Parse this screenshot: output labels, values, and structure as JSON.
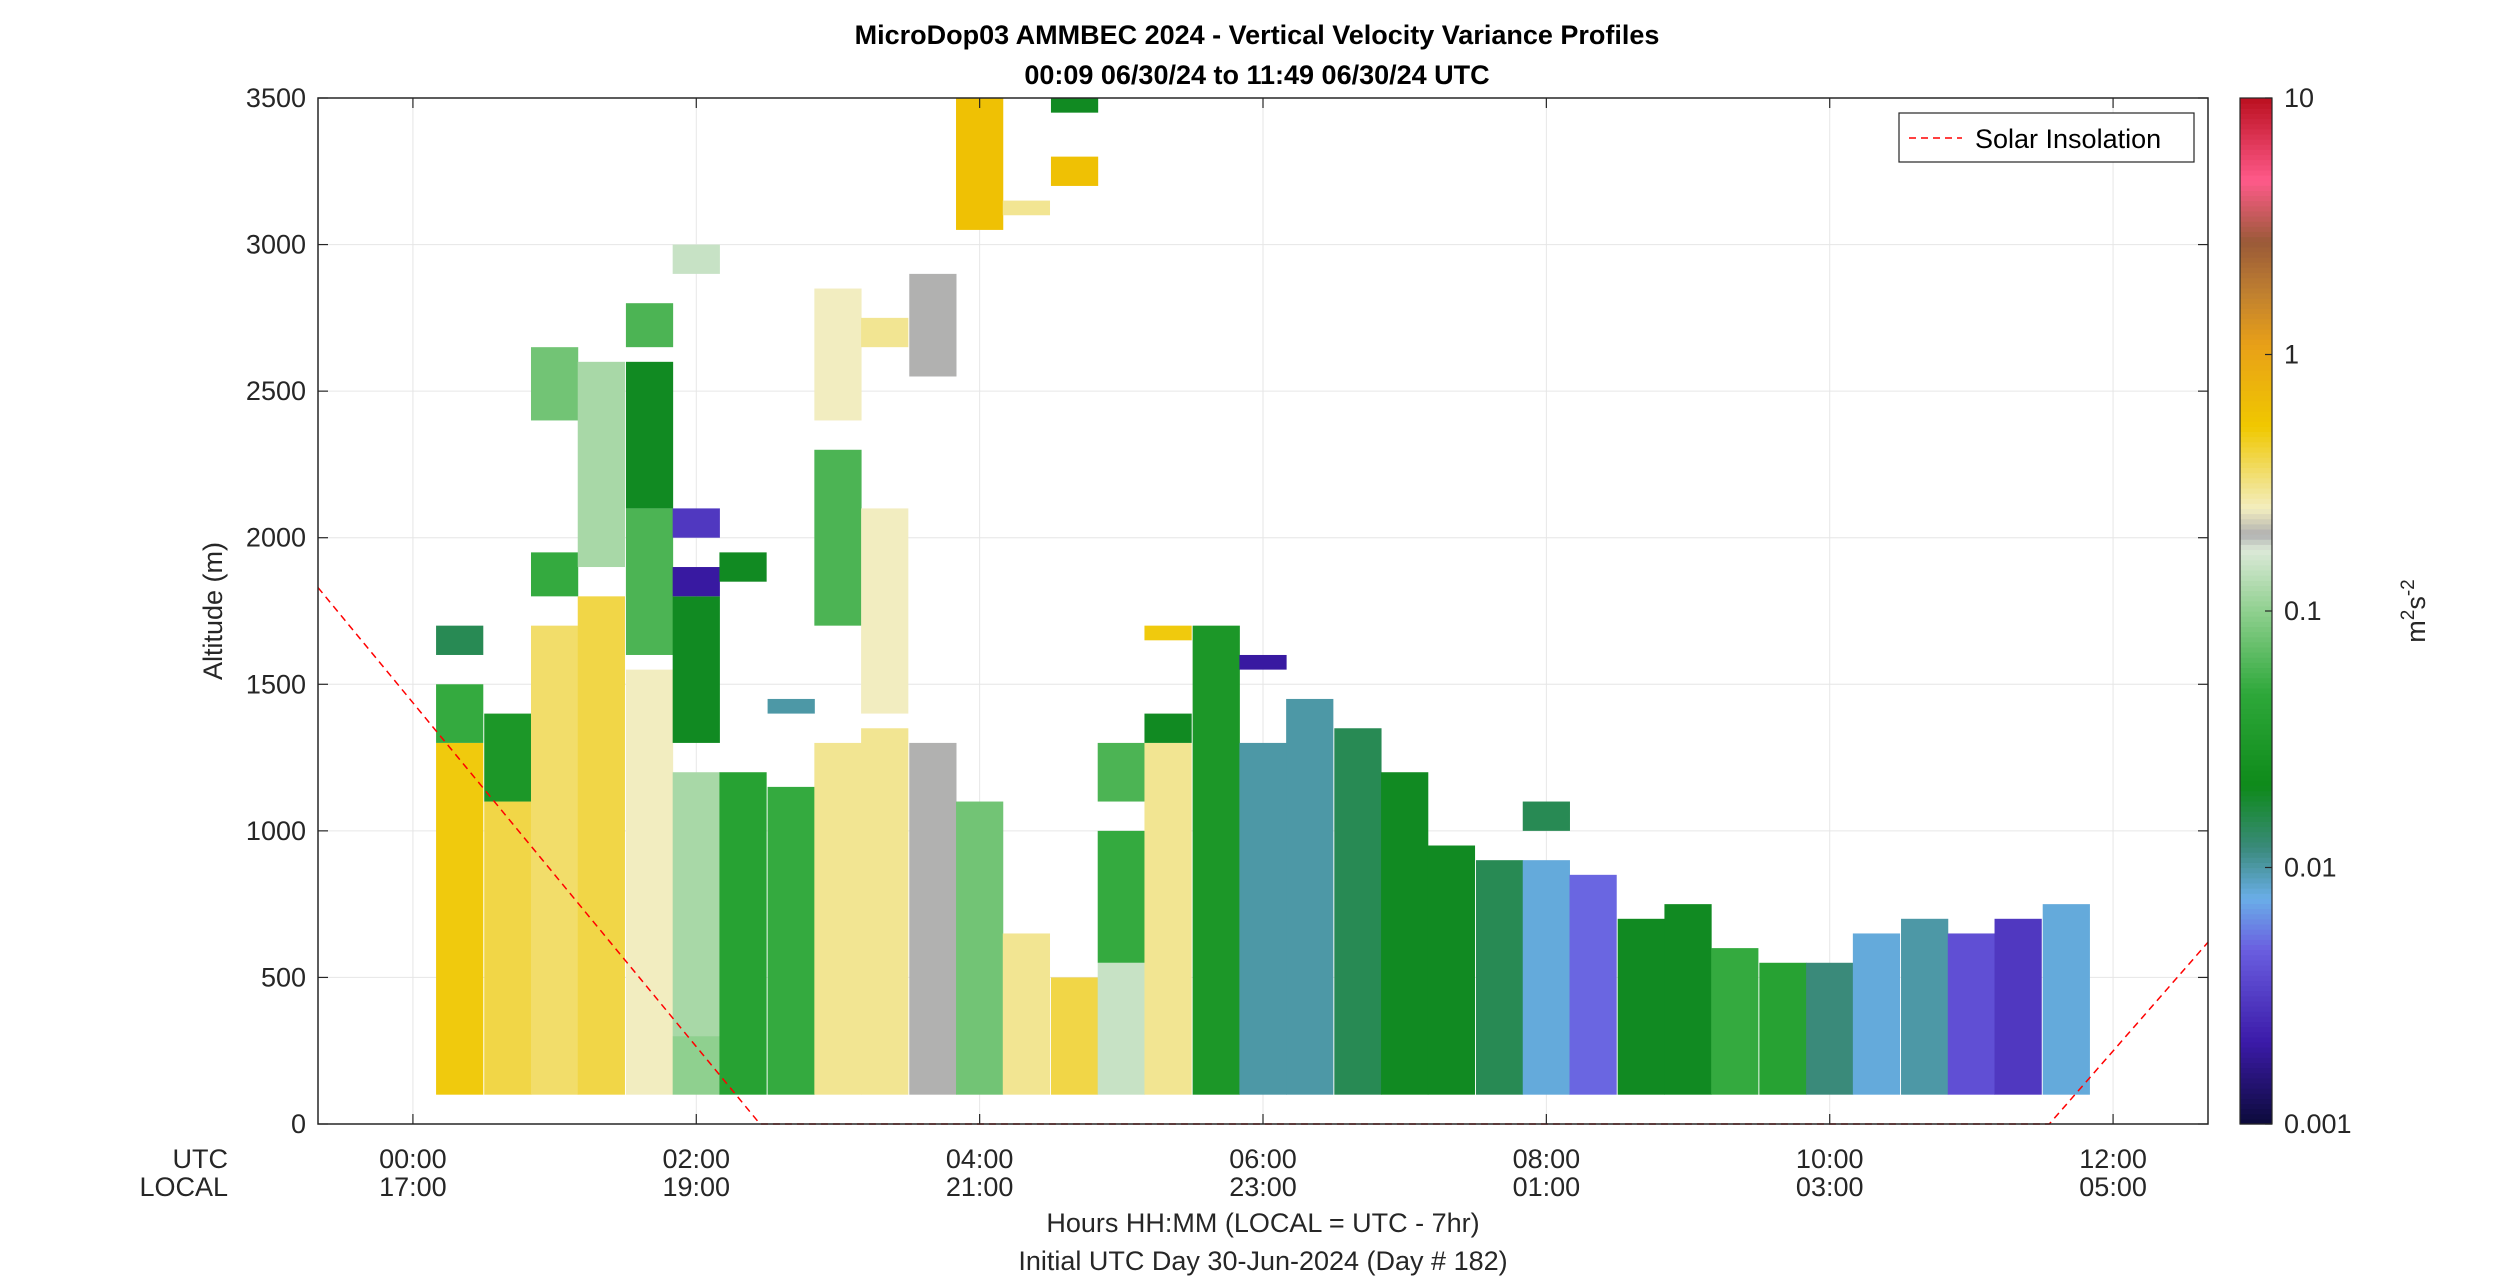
{
  "chart_data": {
    "type": "heatmap",
    "title": "MicroDop03 AMMBEC 2024 - Vertical Velocity Variance Profiles",
    "subtitle": "00:09 06/30/24 to 11:49 06/30/24  UTC",
    "ylabel": "Altitude (m)",
    "xlabel_line1": "Hours HH:MM  (LOCAL = UTC - 7hr)",
    "xlabel_line2": "Initial UTC Day 30-Jun-2024 (Day # 182)",
    "row_label_utc": "UTC",
    "row_label_local": "LOCAL",
    "x_ticks_utc": [
      "00:00",
      "02:00",
      "04:00",
      "06:00",
      "08:00",
      "10:00",
      "12:00"
    ],
    "x_ticks_local": [
      "17:00",
      "19:00",
      "21:00",
      "23:00",
      "01:00",
      "03:00",
      "05:00"
    ],
    "xlim_hours": [
      -0.67,
      12.67
    ],
    "y_ticks": [
      "0",
      "500",
      "1000",
      "1500",
      "2000",
      "2500",
      "3000",
      "3500"
    ],
    "ylim": [
      0,
      3500
    ],
    "grid": true,
    "colorbar": {
      "label_base": "m",
      "label_sup1": "2",
      "label_mid": "s",
      "label_sup2": "-2",
      "ticks": [
        "0.001",
        "0.01",
        "0.1",
        "1",
        "10"
      ],
      "scale": "log",
      "range": [
        0.001,
        10
      ]
    },
    "legend": {
      "label": "Solar Insolation",
      "color": "#ff0000",
      "style": "dashed",
      "placement": "top-right"
    },
    "solar_insolation_line": [
      {
        "t": -0.67,
        "alt": 1830
      },
      {
        "t": 2.45,
        "alt": 0
      },
      {
        "t": 11.55,
        "alt": 0
      },
      {
        "t": 12.67,
        "alt": 620
      }
    ],
    "variance_columns": [
      {
        "t": 0.33,
        "cells": [
          [
            100,
            1300,
            0.5
          ],
          [
            1300,
            1500,
            0.05
          ],
          [
            1600,
            1700,
            0.015
          ]
        ]
      },
      {
        "t": 0.67,
        "cells": [
          [
            100,
            1100,
            0.4
          ],
          [
            1100,
            1400,
            0.03
          ]
        ]
      },
      {
        "t": 1.0,
        "cells": [
          [
            100,
            1700,
            0.35
          ],
          [
            1800,
            1950,
            0.05
          ],
          [
            2400,
            2650,
            0.08
          ]
        ]
      },
      {
        "t": 1.33,
        "cells": [
          [
            100,
            1800,
            0.4
          ],
          [
            1900,
            2600,
            0.12
          ]
        ]
      },
      {
        "t": 1.67,
        "cells": [
          [
            100,
            1550,
            0.25
          ],
          [
            1600,
            2100,
            0.06
          ],
          [
            2100,
            2600,
            0.02
          ],
          [
            2650,
            2800,
            0.06
          ]
        ]
      },
      {
        "t": 2.0,
        "cells": [
          [
            100,
            300,
            0.1
          ],
          [
            300,
            1200,
            0.12
          ],
          [
            1300,
            1800,
            0.02
          ],
          [
            1800,
            1900,
            0.002
          ],
          [
            2000,
            2100,
            0.003
          ],
          [
            2900,
            3000,
            0.15
          ]
        ]
      },
      {
        "t": 2.33,
        "cells": [
          [
            100,
            1200,
            0.04
          ],
          [
            1850,
            1950,
            0.02
          ]
        ]
      },
      {
        "t": 2.67,
        "cells": [
          [
            100,
            1150,
            0.05
          ],
          [
            1400,
            1450,
            0.01
          ]
        ]
      },
      {
        "t": 3.0,
        "cells": [
          [
            100,
            1300,
            0.3
          ],
          [
            1700,
            2300,
            0.06
          ],
          [
            2400,
            2850,
            0.25
          ]
        ]
      },
      {
        "t": 3.33,
        "cells": [
          [
            100,
            1350,
            0.3
          ],
          [
            1400,
            2100,
            0.25
          ],
          [
            2650,
            2750,
            0.3
          ]
        ]
      },
      {
        "t": 3.67,
        "cells": [
          [
            100,
            1300,
            0.2
          ],
          [
            2550,
            2900,
            0.2
          ]
        ]
      },
      {
        "t": 4.0,
        "cells": [
          [
            100,
            1100,
            0.08
          ],
          [
            3050,
            3500,
            0.6
          ]
        ]
      },
      {
        "t": 4.33,
        "cells": [
          [
            100,
            650,
            0.3
          ],
          [
            3100,
            3150,
            0.3
          ]
        ]
      },
      {
        "t": 4.67,
        "cells": [
          [
            100,
            500,
            0.4
          ],
          [
            3200,
            3300,
            0.6
          ],
          [
            3450,
            3500,
            0.02
          ]
        ]
      },
      {
        "t": 5.0,
        "cells": [
          [
            100,
            550,
            0.15
          ],
          [
            550,
            1000,
            0.05
          ],
          [
            1100,
            1300,
            0.06
          ]
        ]
      },
      {
        "t": 5.33,
        "cells": [
          [
            100,
            1300,
            0.3
          ],
          [
            1300,
            1400,
            0.02
          ],
          [
            1650,
            1700,
            0.5
          ]
        ]
      },
      {
        "t": 5.67,
        "cells": [
          [
            100,
            1700,
            0.03
          ]
        ]
      },
      {
        "t": 6.0,
        "cells": [
          [
            100,
            1300,
            0.01
          ],
          [
            1550,
            1600,
            0.002
          ]
        ]
      },
      {
        "t": 6.33,
        "cells": [
          [
            100,
            1450,
            0.01
          ]
        ]
      },
      {
        "t": 6.67,
        "cells": [
          [
            100,
            1350,
            0.015
          ]
        ]
      },
      {
        "t": 7.0,
        "cells": [
          [
            100,
            1200,
            0.02
          ]
        ]
      },
      {
        "t": 7.33,
        "cells": [
          [
            100,
            950,
            0.02
          ]
        ]
      },
      {
        "t": 7.67,
        "cells": [
          [
            100,
            900,
            0.015
          ]
        ]
      },
      {
        "t": 8.0,
        "cells": [
          [
            100,
            900,
            0.008
          ],
          [
            1000,
            1100,
            0.015
          ]
        ]
      },
      {
        "t": 8.33,
        "cells": [
          [
            100,
            850,
            0.005
          ]
        ]
      },
      {
        "t": 8.67,
        "cells": [
          [
            100,
            700,
            0.02
          ]
        ]
      },
      {
        "t": 9.0,
        "cells": [
          [
            100,
            750,
            0.02
          ]
        ]
      },
      {
        "t": 9.33,
        "cells": [
          [
            100,
            600,
            0.05
          ]
        ]
      },
      {
        "t": 9.67,
        "cells": [
          [
            100,
            550,
            0.04
          ]
        ]
      },
      {
        "t": 10.0,
        "cells": [
          [
            100,
            550,
            0.012
          ]
        ]
      },
      {
        "t": 10.33,
        "cells": [
          [
            100,
            650,
            0.008
          ]
        ]
      },
      {
        "t": 10.67,
        "cells": [
          [
            100,
            700,
            0.01
          ]
        ]
      },
      {
        "t": 11.0,
        "cells": [
          [
            100,
            650,
            0.004
          ]
        ]
      },
      {
        "t": 11.33,
        "cells": [
          [
            100,
            700,
            0.003
          ]
        ]
      },
      {
        "t": 11.67,
        "cells": [
          [
            100,
            750,
            0.008
          ]
        ]
      }
    ]
  }
}
